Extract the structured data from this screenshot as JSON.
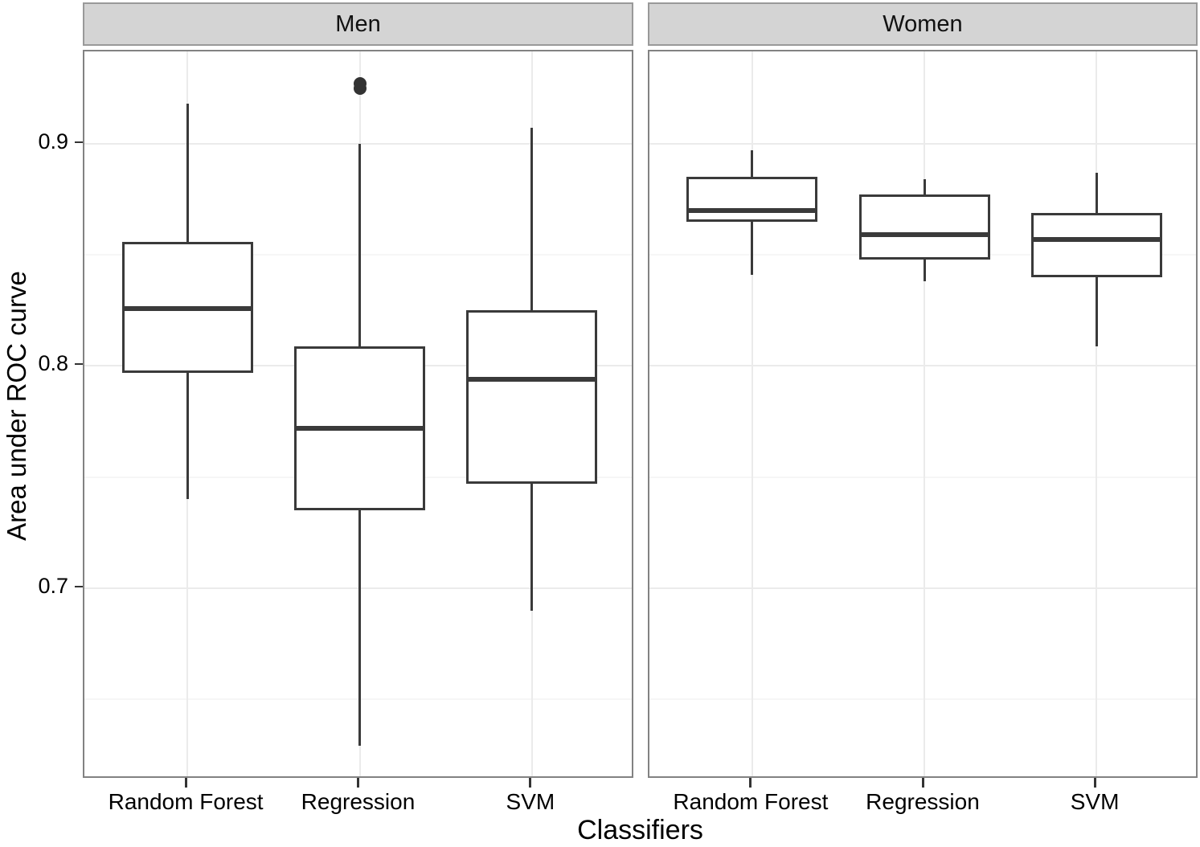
{
  "chart_data": {
    "type": "boxplot",
    "title": "",
    "xlabel": "Classifiers",
    "ylabel": "Area under ROC curve",
    "legend": "none",
    "grid": true,
    "ylim": [
      0.614,
      0.9415
    ],
    "y_ticks": [
      0.7,
      0.8,
      0.9
    ],
    "y_tick_labels": [
      "0.7",
      "0.8",
      "0.9"
    ],
    "y_minor_ticks": [
      0.65,
      0.75,
      0.85
    ],
    "categories": [
      "Random Forest",
      "Regression",
      "SVM"
    ],
    "facets": [
      {
        "label": "Men",
        "boxes": [
          {
            "category": "Random Forest",
            "whisker_low": 0.74,
            "q1": 0.797,
            "median": 0.826,
            "q3": 0.856,
            "whisker_high": 0.918,
            "outliers": []
          },
          {
            "category": "Regression",
            "whisker_low": 0.629,
            "q1": 0.735,
            "median": 0.772,
            "q3": 0.809,
            "whisker_high": 0.9,
            "outliers": [
              0.925,
              0.927
            ]
          },
          {
            "category": "SVM",
            "whisker_low": 0.69,
            "q1": 0.747,
            "median": 0.794,
            "q3": 0.825,
            "whisker_high": 0.907,
            "outliers": []
          }
        ]
      },
      {
        "label": "Women",
        "boxes": [
          {
            "category": "Random Forest",
            "whisker_low": 0.841,
            "q1": 0.865,
            "median": 0.87,
            "q3": 0.885,
            "whisker_high": 0.897,
            "outliers": []
          },
          {
            "category": "Regression",
            "whisker_low": 0.838,
            "q1": 0.848,
            "median": 0.859,
            "q3": 0.877,
            "whisker_high": 0.884,
            "outliers": []
          },
          {
            "category": "SVM",
            "whisker_low": 0.809,
            "q1": 0.84,
            "median": 0.857,
            "q3": 0.869,
            "whisker_high": 0.887,
            "outliers": []
          }
        ]
      }
    ],
    "colors": {
      "box_stroke": "#3a3a3a",
      "outlier_fill": "#333333",
      "grid_major": "#ebebeb",
      "grid_minor": "#f6f6f6",
      "strip_bg": "#d4d4d4",
      "strip_border": "#999999",
      "panel_border": "#828282",
      "tick_mark": "#333333",
      "text": "#000000"
    }
  }
}
